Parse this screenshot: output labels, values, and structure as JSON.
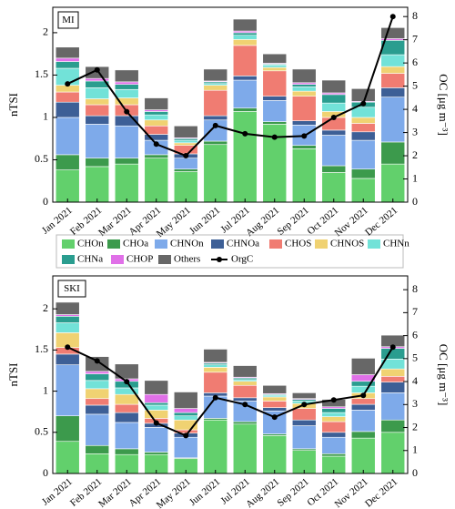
{
  "chart_data": [
    {
      "type": "bar",
      "stacked": true,
      "title": "MI",
      "ylabel": "nTSI",
      "y2label": "OC [μg m⁻³]",
      "categories": [
        "Jan 2021",
        "Feb 2021",
        "Mar 2021",
        "Apr 2021",
        "May 2021",
        "Jun 2021",
        "Jul 2021",
        "Aug 2021",
        "Sep 2021",
        "Oct 2021",
        "Nov 2021",
        "Dec 2021"
      ],
      "ylim": [
        0,
        2.3
      ],
      "yticks": [
        0,
        0.5,
        1,
        1.5,
        2
      ],
      "y2lim": [
        0,
        8.4
      ],
      "y2ticks": [
        0,
        1,
        2,
        3,
        4,
        5,
        6,
        7,
        8
      ],
      "series": [
        {
          "name": "CHOn",
          "color": "#62d06c",
          "values": [
            0.38,
            0.42,
            0.45,
            0.52,
            0.36,
            0.68,
            1.07,
            0.92,
            0.63,
            0.35,
            0.28,
            0.45
          ]
        },
        {
          "name": "CHOa",
          "color": "#3c9a4c",
          "values": [
            0.18,
            0.1,
            0.07,
            0.04,
            0.03,
            0.04,
            0.04,
            0.03,
            0.04,
            0.08,
            0.11,
            0.26
          ]
        },
        {
          "name": "CHNOn",
          "color": "#7eaaea",
          "values": [
            0.44,
            0.4,
            0.38,
            0.17,
            0.13,
            0.25,
            0.33,
            0.25,
            0.24,
            0.36,
            0.34,
            0.53
          ]
        },
        {
          "name": "CHNOa",
          "color": "#3d5f96",
          "values": [
            0.18,
            0.1,
            0.12,
            0.07,
            0.05,
            0.05,
            0.05,
            0.05,
            0.05,
            0.06,
            0.1,
            0.11
          ]
        },
        {
          "name": "CHOS",
          "color": "#f07c72",
          "values": [
            0.12,
            0.13,
            0.13,
            0.1,
            0.1,
            0.3,
            0.36,
            0.3,
            0.29,
            0.15,
            0.1,
            0.17
          ]
        },
        {
          "name": "CHNOS",
          "color": "#f0d272",
          "values": [
            0.08,
            0.07,
            0.08,
            0.07,
            0.03,
            0.06,
            0.07,
            0.04,
            0.06,
            0.07,
            0.07,
            0.08
          ]
        },
        {
          "name": "CHNn",
          "color": "#72e2d8",
          "values": [
            0.2,
            0.13,
            0.1,
            0.06,
            0.03,
            0.02,
            0.05,
            0.03,
            0.05,
            0.1,
            0.12,
            0.14
          ]
        },
        {
          "name": "CHNa",
          "color": "#2a9d8f",
          "values": [
            0.08,
            0.08,
            0.06,
            0.04,
            0.02,
            0.02,
            0.03,
            0.01,
            0.03,
            0.1,
            0.06,
            0.17
          ]
        },
        {
          "name": "CHOP",
          "color": "#e070e8",
          "values": [
            0.04,
            0.03,
            0.03,
            0.02,
            0.01,
            0.01,
            0.02,
            0.01,
            0.02,
            0.02,
            0.01,
            0.02
          ]
        },
        {
          "name": "Others",
          "color": "#676767",
          "values": [
            0.13,
            0.14,
            0.14,
            0.14,
            0.14,
            0.14,
            0.14,
            0.11,
            0.16,
            0.15,
            0.15,
            0.13
          ]
        },
        {
          "name": "OrgC",
          "color": "#000000",
          "type": "line",
          "axis": "y2",
          "values": [
            5.1,
            5.7,
            3.9,
            2.5,
            2.0,
            3.3,
            2.95,
            2.8,
            2.85,
            3.65,
            4.25,
            8.0
          ]
        }
      ]
    },
    {
      "type": "bar",
      "stacked": true,
      "title": "SKI",
      "ylabel": "nTSI",
      "y2label": "OC [μg m⁻³]",
      "categories": [
        "Jan 2021",
        "Feb 2021",
        "Mar 2021",
        "Apr 2021",
        "May 2021",
        "Jun 2021",
        "Jul 2021",
        "Aug 2021",
        "Sep 2021",
        "Oct 2021",
        "Nov 2021",
        "Dec 2021"
      ],
      "ylim": [
        0,
        2.4
      ],
      "yticks": [
        0,
        0.5,
        1,
        1.5,
        2
      ],
      "y2lim": [
        0,
        8.6
      ],
      "y2ticks": [
        0,
        1,
        2,
        3,
        4,
        5,
        6,
        7,
        8
      ],
      "series": [
        {
          "name": "CHOn",
          "color": "#62d06c",
          "values": [
            0.39,
            0.24,
            0.23,
            0.23,
            0.18,
            0.65,
            0.6,
            0.46,
            0.28,
            0.21,
            0.43,
            0.5
          ]
        },
        {
          "name": "CHOa",
          "color": "#3c9a4c",
          "values": [
            0.31,
            0.1,
            0.07,
            0.03,
            0.01,
            0.02,
            0.03,
            0.02,
            0.02,
            0.03,
            0.08,
            0.15
          ]
        },
        {
          "name": "CHNOn",
          "color": "#7eaaea",
          "values": [
            0.62,
            0.38,
            0.32,
            0.3,
            0.25,
            0.27,
            0.25,
            0.28,
            0.28,
            0.2,
            0.26,
            0.33
          ]
        },
        {
          "name": "CHNOa",
          "color": "#3d5f96",
          "values": [
            0.13,
            0.11,
            0.12,
            0.05,
            0.05,
            0.04,
            0.04,
            0.04,
            0.07,
            0.06,
            0.07,
            0.13
          ]
        },
        {
          "name": "CHOS",
          "color": "#f07c72",
          "values": [
            0.08,
            0.08,
            0.1,
            0.06,
            0.04,
            0.25,
            0.15,
            0.08,
            0.14,
            0.13,
            0.07,
            0.07
          ]
        },
        {
          "name": "CHNOS",
          "color": "#f0d272",
          "values": [
            0.18,
            0.12,
            0.12,
            0.1,
            0.12,
            0.06,
            0.05,
            0.05,
            0.06,
            0.06,
            0.07,
            0.09
          ]
        },
        {
          "name": "CHNn",
          "color": "#72e2d8",
          "values": [
            0.12,
            0.1,
            0.08,
            0.06,
            0.05,
            0.03,
            0.02,
            0.02,
            0.03,
            0.05,
            0.08,
            0.12
          ]
        },
        {
          "name": "CHNa",
          "color": "#2a9d8f",
          "values": [
            0.08,
            0.08,
            0.08,
            0.03,
            0.04,
            0.02,
            0.02,
            0.01,
            0.02,
            0.05,
            0.06,
            0.13
          ]
        },
        {
          "name": "CHOP",
          "color": "#e070e8",
          "values": [
            0.02,
            0.03,
            0.03,
            0.1,
            0.05,
            0.01,
            0.01,
            0.01,
            0.01,
            0.02,
            0.08,
            0.02
          ]
        },
        {
          "name": "Others",
          "color": "#676767",
          "values": [
            0.15,
            0.18,
            0.18,
            0.17,
            0.2,
            0.16,
            0.14,
            0.1,
            0.07,
            0.09,
            0.2,
            0.14
          ]
        },
        {
          "name": "OrgC",
          "color": "#000000",
          "type": "line",
          "axis": "y2",
          "values": [
            5.5,
            4.9,
            4.0,
            2.2,
            1.65,
            3.3,
            3.0,
            2.45,
            3.0,
            3.2,
            3.4,
            5.5
          ]
        }
      ]
    }
  ]
}
